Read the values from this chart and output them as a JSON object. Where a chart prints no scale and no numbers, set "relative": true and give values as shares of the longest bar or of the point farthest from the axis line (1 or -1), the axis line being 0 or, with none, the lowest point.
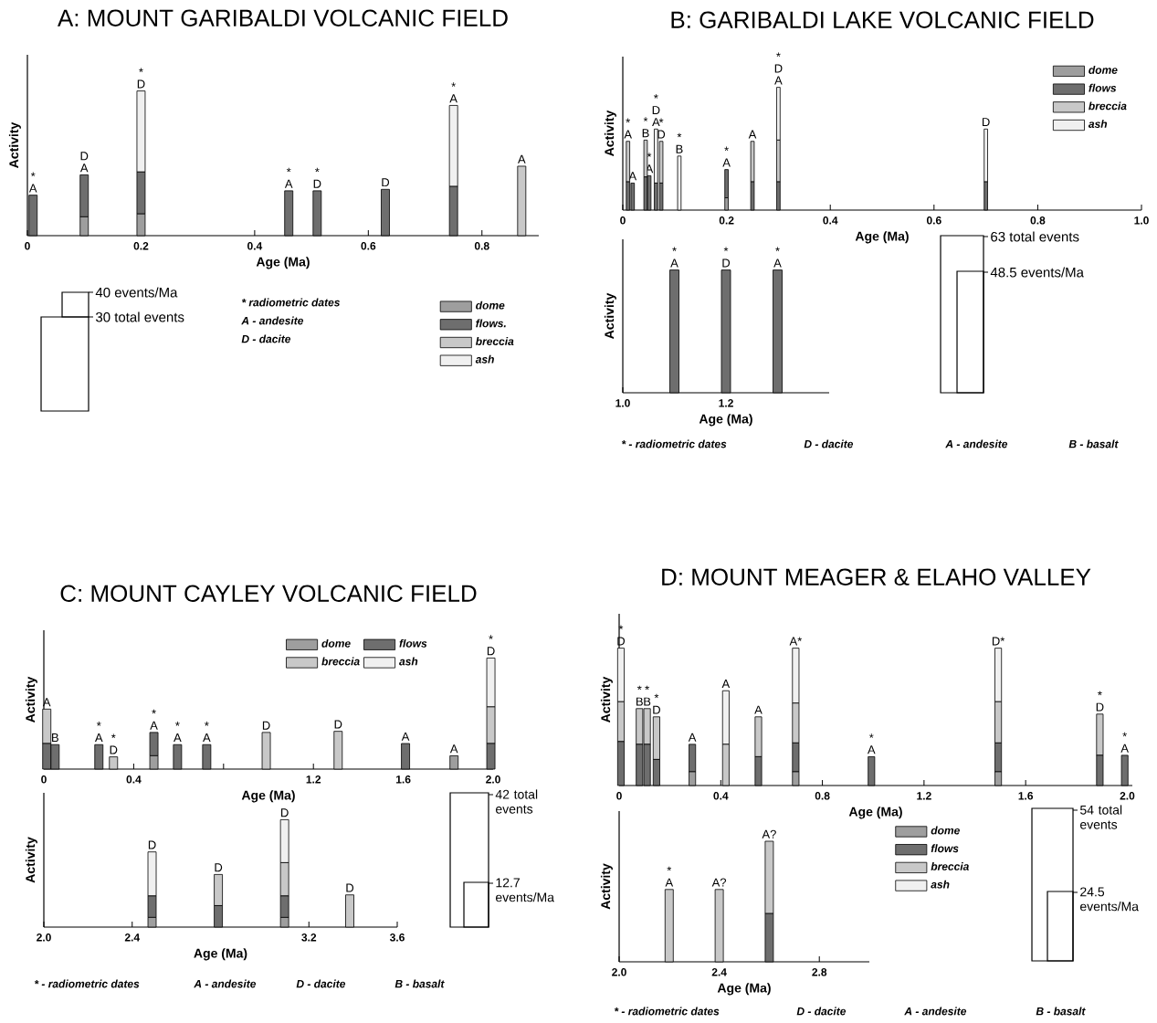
{
  "chart_data": [
    {
      "type": "bar",
      "title": "A:  MOUNT GARIBALDI VOLCANIC FIELD",
      "xlabel": "Age (Ma)",
      "ylabel": "Activity",
      "stacked": true,
      "relative": true,
      "legend": "bottom right",
      "x": [
        0.01,
        0.1,
        0.2,
        0.46,
        0.51,
        0.63,
        0.75,
        0.87
      ],
      "series": [
        {
          "name": "dome",
          "color": "#9e9e9e",
          "values": [
            null,
            0.13,
            0.15,
            null,
            null,
            null,
            null,
            null
          ]
        },
        {
          "name": "flows.",
          "color": "#6e6e6e",
          "values": [
            0.28,
            0.29,
            0.29,
            0.31,
            0.31,
            0.32,
            0.34,
            null
          ]
        },
        {
          "name": "breccia",
          "color": "#c8c8c8",
          "values": [
            null,
            null,
            null,
            null,
            null,
            null,
            null,
            0.48
          ]
        },
        {
          "name": "ash",
          "color": "#f0f0f0",
          "values": [
            null,
            null,
            0.56,
            null,
            null,
            null,
            0.56,
            null
          ]
        }
      ],
      "xlim": [
        0,
        0.9
      ],
      "xticks": [
        0,
        0.2,
        0.4,
        0.6,
        0.8
      ],
      "annotations": [
        {
          "text": "A",
          "x": 0.01,
          "y": 0.28
        },
        {
          "text": "*",
          "x": 0.01,
          "y": 0.28
        },
        {
          "text": "A",
          "x": 0.1,
          "y": 0.42
        },
        {
          "text": "D",
          "x": 0.1,
          "y": 0.42
        },
        {
          "text": "D",
          "x": 0.2,
          "y": 1.0
        },
        {
          "text": "*",
          "x": 0.2,
          "y": 1.0
        },
        {
          "text": "A",
          "x": 0.46,
          "y": 0.31
        },
        {
          "text": "*",
          "x": 0.46,
          "y": 0.31
        },
        {
          "text": "D",
          "x": 0.51,
          "y": 0.31
        },
        {
          "text": "*",
          "x": 0.51,
          "y": 0.31
        },
        {
          "text": "D",
          "x": 0.63,
          "y": 0.32
        },
        {
          "text": "A",
          "x": 0.75,
          "y": 0.9
        },
        {
          "text": "*",
          "x": 0.75,
          "y": 0.9
        },
        {
          "text": "A",
          "x": 0.87,
          "y": 0.48
        }
      ]
    },
    {
      "type": "other",
      "annotations": [
        "40 events/Ma",
        "30 total events",
        "* radiometric dates",
        "A - andesite",
        "D - dacite"
      ]
    },
    {
      "type": "bar",
      "title": "B:  GARIBALDI LAKE VOLCANIC FIELD",
      "xlabel": "Age (Ma)",
      "ylabel": "Activity",
      "stacked": true,
      "relative": true,
      "legend": "top right",
      "x": [
        0.01,
        0.019,
        0.044,
        0.051,
        0.064,
        0.074,
        0.109,
        0.2,
        0.25,
        0.3,
        0.7
      ],
      "series": [
        {
          "name": "dome",
          "color": "#9e9e9e",
          "values": [
            null,
            null,
            null,
            null,
            null,
            null,
            null,
            0.1,
            null,
            null,
            null
          ]
        },
        {
          "name": "flows",
          "color": "#6e6e6e",
          "values": [
            0.23,
            0.22,
            0.27,
            0.28,
            0.22,
            0.22,
            null,
            0.23,
            0.23,
            0.23,
            0.23
          ]
        },
        {
          "name": "breccia",
          "color": "#c8c8c8",
          "values": [
            0.33,
            null,
            0.3,
            null,
            null,
            0.34,
            null,
            null,
            0.33,
            0.34,
            null
          ]
        },
        {
          "name": "ash",
          "color": "#f0f0f0",
          "values": [
            null,
            null,
            null,
            null,
            0.44,
            null,
            0.44,
            null,
            null,
            0.43,
            0.43
          ]
        }
      ],
      "xlim": [
        0,
        1.0
      ],
      "xticks": [
        0,
        0.2,
        0.4,
        0.6,
        0.8,
        {
          "value": 1,
          "label": "1.0"
        }
      ],
      "annotations": [
        {
          "text": "A",
          "x": 0.01,
          "y": 0.56
        },
        {
          "text": "*",
          "x": 0.01,
          "y": 0.56
        },
        {
          "text": "A",
          "x": 0.019,
          "y": 0.22
        },
        {
          "text": "B",
          "x": 0.044,
          "y": 0.57
        },
        {
          "text": "*",
          "x": 0.044,
          "y": 0.57
        },
        {
          "text": "A",
          "x": 0.051,
          "y": 0.28
        },
        {
          "text": "*",
          "x": 0.051,
          "y": 0.28
        },
        {
          "text": "A",
          "x": 0.064,
          "y": 0.66
        },
        {
          "text": "D",
          "x": 0.064,
          "y": 0.66
        },
        {
          "text": "*",
          "x": 0.064,
          "y": 0.66
        },
        {
          "text": "D",
          "x": 0.074,
          "y": 0.56
        },
        {
          "text": "*",
          "x": 0.074,
          "y": 0.56
        },
        {
          "text": "B",
          "x": 0.109,
          "y": 0.44
        },
        {
          "text": "*",
          "x": 0.109,
          "y": 0.44
        },
        {
          "text": "A",
          "x": 0.2,
          "y": 0.33
        },
        {
          "text": "*",
          "x": 0.2,
          "y": 0.33
        },
        {
          "text": "A",
          "x": 0.25,
          "y": 0.56
        },
        {
          "text": "A",
          "x": 0.3,
          "y": 1.0
        },
        {
          "text": "D",
          "x": 0.3,
          "y": 1.0
        },
        {
          "text": "*",
          "x": 0.3,
          "y": 1.0
        },
        {
          "text": "D",
          "x": 0.7,
          "y": 0.66
        }
      ]
    },
    {
      "type": "bar",
      "xlabel": "Age (Ma)",
      "ylabel": "Activity",
      "stacked": true,
      "relative": true,
      "x": [
        1.1,
        1.2,
        1.3
      ],
      "series": [
        {
          "color": "#9e9e9e",
          "values": [
            null,
            null,
            null
          ]
        },
        {
          "color": "#6e6e6e",
          "values": [
            1,
            1,
            1
          ]
        },
        {
          "color": "#c8c8c8",
          "values": [
            null,
            null,
            null
          ]
        },
        {
          "color": "#f0f0f0",
          "values": [
            null,
            null,
            null
          ]
        }
      ],
      "xlim": [
        1.0,
        1.4
      ],
      "xticks": [
        {
          "value": 1,
          "label": "1.0"
        },
        1.2
      ],
      "annotations": [
        {
          "text": "A",
          "x": 1.1,
          "y": 1
        },
        {
          "text": "*",
          "x": 1.1,
          "y": 1
        },
        {
          "text": "D",
          "x": 1.2,
          "y": 1
        },
        {
          "text": "*",
          "x": 1.2,
          "y": 1
        },
        {
          "text": "A",
          "x": 1.3,
          "y": 1
        },
        {
          "text": "*",
          "x": 1.3,
          "y": 1
        }
      ]
    },
    {
      "type": "other",
      "annotations": [
        "63 total events",
        "48.5 events/Ma",
        "* - radiometric dates",
        "D - dacite",
        "A - andesite",
        "B - basalt"
      ]
    },
    {
      "type": "bar",
      "title": "C:  MOUNT CAYLEY VOLCANIC FIELD",
      "xlabel": "Age (Ma)",
      "ylabel": "Activity",
      "stacked": true,
      "relative": true,
      "legend": "top",
      "x": [
        0.013,
        0.05,
        0.245,
        0.31,
        0.49,
        0.595,
        0.725,
        0.99,
        1.31,
        1.61,
        1.826,
        1.99
      ],
      "series": [
        {
          "name": "dome",
          "color": "#9e9e9e",
          "values": [
            null,
            null,
            null,
            null,
            0.12,
            null,
            null,
            null,
            null,
            null,
            0.12,
            null
          ]
        },
        {
          "name": "flows",
          "color": "#6e6e6e",
          "values": [
            0.23,
            0.22,
            0.22,
            null,
            0.21,
            0.22,
            0.22,
            null,
            null,
            0.23,
            null,
            0.23
          ]
        },
        {
          "name": "breccia",
          "color": "#c8c8c8",
          "values": [
            0.31,
            null,
            null,
            0.11,
            null,
            null,
            null,
            0.33,
            0.34,
            null,
            null,
            0.33
          ]
        },
        {
          "name": "ash",
          "color": "#f0f0f0",
          "values": [
            null,
            null,
            null,
            null,
            null,
            null,
            null,
            null,
            null,
            null,
            null,
            0.44
          ]
        }
      ],
      "xlim": [
        0,
        2
      ],
      "xticks": [
        0,
        0.4,
        {
          "value": 0.8,
          "label": null
        },
        1.2,
        1.6,
        {
          "value": 2,
          "label": "2.0"
        }
      ],
      "annotations": [
        {
          "text": "A",
          "x": 0.013,
          "y": 0.54
        },
        {
          "text": "B",
          "x": 0.05,
          "y": 0.22
        },
        {
          "text": "A",
          "x": 0.245,
          "y": 0.22
        },
        {
          "text": "*",
          "x": 0.245,
          "y": 0.22
        },
        {
          "text": "D",
          "x": 0.31,
          "y": 0.11
        },
        {
          "text": "*",
          "x": 0.31,
          "y": 0.11
        },
        {
          "text": "A",
          "x": 0.49,
          "y": 0.33
        },
        {
          "text": "*",
          "x": 0.49,
          "y": 0.33
        },
        {
          "text": "A",
          "x": 0.595,
          "y": 0.22
        },
        {
          "text": "*",
          "x": 0.595,
          "y": 0.22
        },
        {
          "text": "A",
          "x": 0.725,
          "y": 0.22
        },
        {
          "text": "*",
          "x": 0.725,
          "y": 0.22
        },
        {
          "text": "D",
          "x": 0.99,
          "y": 0.33
        },
        {
          "text": "D",
          "x": 1.31,
          "y": 0.34
        },
        {
          "text": "A",
          "x": 1.61,
          "y": 0.23
        },
        {
          "text": "A",
          "x": 1.826,
          "y": 0.12
        },
        {
          "text": "D",
          "x": 1.99,
          "y": 1.0
        },
        {
          "text": "*",
          "x": 1.99,
          "y": 1.0
        }
      ]
    },
    {
      "type": "bar",
      "xlabel": "Age (Ma)",
      "ylabel": "Activity",
      "stacked": true,
      "relative": true,
      "x": [
        2.49,
        2.79,
        3.09,
        3.385
      ],
      "series": [
        {
          "color": "#9e9e9e",
          "values": [
            0.09,
            null,
            0.09,
            null
          ]
        },
        {
          "color": "#6e6e6e",
          "values": [
            0.2,
            0.2,
            0.2,
            null
          ]
        },
        {
          "color": "#c8c8c8",
          "values": [
            null,
            0.29,
            0.31,
            0.3
          ]
        },
        {
          "color": "#f0f0f0",
          "values": [
            0.41,
            null,
            0.4,
            null
          ]
        }
      ],
      "xlim": [
        2.0,
        3.6
      ],
      "xticks": [
        {
          "value": 2,
          "label": "2.0"
        },
        2.4,
        {
          "value": 2.8,
          "label": null
        },
        3.2,
        3.6
      ],
      "annotations": [
        {
          "text": "D",
          "x": 2.49,
          "y": 0.7
        },
        {
          "text": "D",
          "x": 2.79,
          "y": 0.49
        },
        {
          "text": "D",
          "x": 3.09,
          "y": 1.0
        },
        {
          "text": "D",
          "x": 3.385,
          "y": 0.3
        }
      ]
    },
    {
      "type": "other",
      "annotations": [
        "42 total events",
        "12.7 events/Ma",
        "* - radiometric dates",
        "A - andesite",
        "D - dacite",
        "B - basalt"
      ]
    },
    {
      "type": "bar",
      "title": "D: MOUNT MEAGER & ELAHO VALLEY",
      "xlabel": "Age (Ma)",
      "ylabel": "Activity",
      "stacked": true,
      "relative": true,
      "x": [
        0.007,
        0.08,
        0.11,
        0.147,
        0.288,
        0.42,
        0.548,
        0.695,
        0.993,
        1.492,
        1.892,
        1.99
      ],
      "series": [
        {
          "color": "#9e9e9e",
          "values": [
            null,
            null,
            null,
            null,
            0.1,
            null,
            null,
            0.1,
            null,
            0.1,
            null,
            null
          ]
        },
        {
          "color": "#6e6e6e",
          "values": [
            0.32,
            0.3,
            0.3,
            0.19,
            0.2,
            null,
            0.21,
            0.21,
            0.21,
            0.21,
            0.22,
            0.22
          ]
        },
        {
          "color": "#c8c8c8",
          "values": [
            0.29,
            0.26,
            0.26,
            0.31,
            null,
            0.3,
            0.29,
            0.29,
            null,
            0.3,
            0.3,
            null
          ]
        },
        {
          "color": "#f0f0f0",
          "values": [
            0.39,
            null,
            null,
            null,
            null,
            0.39,
            null,
            0.4,
            null,
            0.39,
            null,
            null
          ]
        }
      ],
      "xlim": [
        0,
        2.02
      ],
      "xticks": [
        0,
        0.4,
        0.8,
        1.2,
        1.6,
        {
          "value": 2,
          "label": "2.0"
        }
      ],
      "annotations": [
        {
          "text": "D",
          "x": 0.007,
          "y": 1.0
        },
        {
          "text": "*",
          "x": 0.007,
          "y": 1.0
        },
        {
          "text": "B",
          "x": 0.08,
          "y": 0.56
        },
        {
          "text": "*",
          "x": 0.08,
          "y": 0.56
        },
        {
          "text": "B",
          "x": 0.11,
          "y": 0.56
        },
        {
          "text": "*",
          "x": 0.11,
          "y": 0.56
        },
        {
          "text": "D",
          "x": 0.147,
          "y": 0.5
        },
        {
          "text": "*",
          "x": 0.147,
          "y": 0.5
        },
        {
          "text": "A",
          "x": 0.288,
          "y": 0.3
        },
        {
          "text": "A",
          "x": 0.42,
          "y": 0.69
        },
        {
          "text": "A",
          "x": 0.548,
          "y": 0.5
        },
        {
          "text": "A*",
          "x": 0.695,
          "y": 1.0
        },
        {
          "text": "A",
          "x": 0.993,
          "y": 0.21
        },
        {
          "text": "*",
          "x": 0.993,
          "y": 0.21
        },
        {
          "text": "D*",
          "x": 1.492,
          "y": 1.0
        },
        {
          "text": "D",
          "x": 1.892,
          "y": 0.52
        },
        {
          "text": "*",
          "x": 1.892,
          "y": 0.52
        },
        {
          "text": "A",
          "x": 1.99,
          "y": 0.22
        },
        {
          "text": "*",
          "x": 1.99,
          "y": 0.22
        }
      ]
    },
    {
      "type": "bar",
      "xlabel": "Age (Ma)",
      "ylabel": "Activity",
      "stacked": true,
      "relative": true,
      "legend": "right",
      "x": [
        2.2,
        2.4,
        2.6
      ],
      "series": [
        {
          "name": "dome",
          "color": "#9e9e9e",
          "values": [
            null,
            null,
            null
          ]
        },
        {
          "name": "flows",
          "color": "#6e6e6e",
          "values": [
            null,
            null,
            0.4
          ]
        },
        {
          "name": "breccia",
          "color": "#c8c8c8",
          "values": [
            0.6,
            0.6,
            0.6
          ]
        },
        {
          "name": "ash",
          "color": "#f0f0f0",
          "values": [
            null,
            null,
            null
          ]
        }
      ],
      "xlim": [
        2.0,
        3.0
      ],
      "xticks": [
        {
          "value": 2,
          "label": "2.0"
        },
        2.4,
        2.8
      ],
      "annotations": [
        {
          "text": "A",
          "x": 2.2,
          "y": 0.6
        },
        {
          "text": "*",
          "x": 2.2,
          "y": 0.6
        },
        {
          "text": "A?",
          "x": 2.4,
          "y": 0.6
        },
        {
          "text": "A?",
          "x": 2.6,
          "y": 1.0
        }
      ]
    },
    {
      "type": "other",
      "annotations": [
        "54 total events",
        "24.5 events/Ma",
        "* - radiometric dates",
        "D - dacite",
        "A - andesite",
        "B - basalt"
      ]
    }
  ]
}
